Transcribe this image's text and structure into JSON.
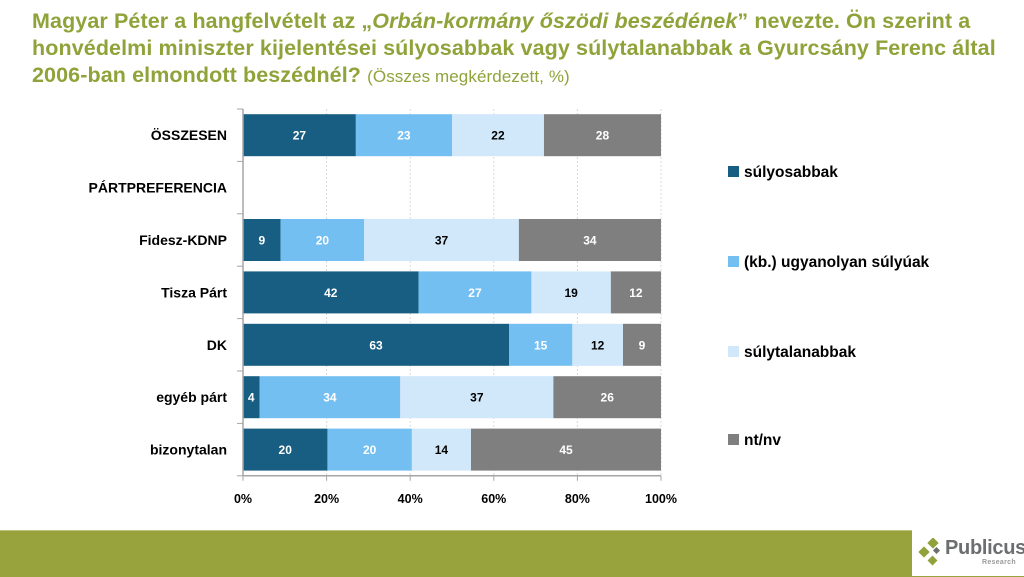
{
  "title": {
    "part1": "Magyar Péter a hangfelvételt az „",
    "italic": "Orbán-kormány őszödi beszédének",
    "part2": "” nevezte. Ön szerint a honvédelmi miniszter kijelentései súlyosabbak vagy súlytalanabbak a Gyurcsány Ferenc által 2006-ban elmondott beszédnél?",
    "subtitle": "(Összes megkérdezett, %)"
  },
  "logo": {
    "name": "Publicus",
    "sub": "Research"
  },
  "colors": {
    "title": "#8fa33a",
    "footer": "#98a33e",
    "series": [
      "#175e82",
      "#74bff2",
      "#d1e8fa",
      "#7f7f7f"
    ],
    "label_colors": [
      "#ffffff",
      "#ffffff",
      "#000000",
      "#ffffff"
    ]
  },
  "chart_data": {
    "type": "bar",
    "orientation": "horizontal",
    "stacked": "percent",
    "categories": [
      "ÖSSZESEN",
      "PÁRTPREFERENCIA",
      "Fidesz-KDNP",
      "Tisza Párt",
      "DK",
      "egyéb párt",
      "bizonytalan"
    ],
    "series": [
      {
        "name": "súlyosabbak",
        "values": [
          27,
          null,
          9,
          42,
          63,
          4,
          20
        ]
      },
      {
        "name": "(kb.) ugyanolyan súlyúak",
        "values": [
          23,
          null,
          20,
          27,
          15,
          34,
          20
        ]
      },
      {
        "name": "súlytalanabbak",
        "values": [
          22,
          null,
          37,
          19,
          12,
          37,
          14
        ]
      },
      {
        "name": "nt/nv",
        "values": [
          28,
          null,
          34,
          12,
          9,
          26,
          45
        ]
      }
    ],
    "xlim": [
      0,
      100
    ],
    "xticks": [
      "0%",
      "20%",
      "40%",
      "60%",
      "80%",
      "100%"
    ],
    "xlabel": "",
    "ylabel": "",
    "grid": "vertical dotted",
    "legend": "right"
  }
}
